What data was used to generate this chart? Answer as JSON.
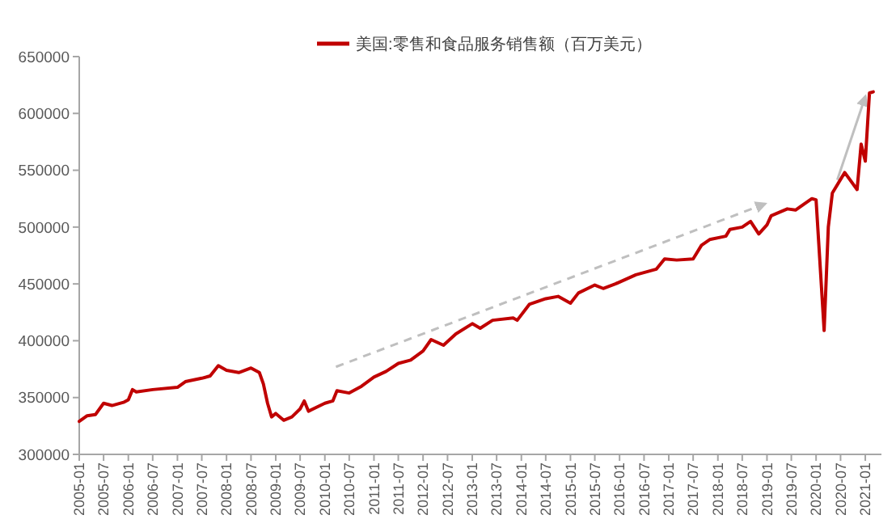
{
  "chart_data": {
    "type": "line",
    "legend": "top",
    "grid": false,
    "marker": "none",
    "line_style": "solid",
    "xlim": [
      "2005-01",
      "2021-05"
    ],
    "xticks": [
      "2005-01",
      "2005-07",
      "2006-01",
      "2006-07",
      "2007-01",
      "2007-07",
      "2008-01",
      "2008-07",
      "2009-01",
      "2009-07",
      "2010-01",
      "2010-07",
      "2011-01",
      "2011-07",
      "2012-01",
      "2012-07",
      "2013-01",
      "2013-07",
      "2014-01",
      "2014-07",
      "2015-01",
      "2015-07",
      "2016-01",
      "2016-07",
      "2017-01",
      "2017-07",
      "2018-01",
      "2018-07",
      "2019-01",
      "2019-07",
      "2020-01",
      "2020-07",
      "2021-01"
    ],
    "ylim": [
      300000,
      650000
    ],
    "yticks": [
      300000,
      350000,
      400000,
      450000,
      500000,
      550000,
      600000,
      650000
    ],
    "series": [
      {
        "name": "美国:零售和食品服务销售额（百万美元）",
        "color": "#c00000",
        "x": [
          "2005-01",
          "2005-03",
          "2005-05",
          "2005-07",
          "2005-09",
          "2005-12",
          "2006-01",
          "2006-02",
          "2006-03",
          "2006-07",
          "2007-01",
          "2007-03",
          "2007-07",
          "2007-09",
          "2007-11",
          "2008-01",
          "2008-04",
          "2008-07",
          "2008-09",
          "2008-10",
          "2008-11",
          "2008-12",
          "2009-01",
          "2009-03",
          "2009-05",
          "2009-07",
          "2009-08",
          "2009-09",
          "2010-01",
          "2010-03",
          "2010-04",
          "2010-07",
          "2010-10",
          "2011-01",
          "2011-04",
          "2011-07",
          "2011-10",
          "2012-01",
          "2012-03",
          "2012-06",
          "2012-09",
          "2013-01",
          "2013-03",
          "2013-06",
          "2013-11",
          "2013-12",
          "2014-03",
          "2014-07",
          "2014-10",
          "2015-01",
          "2015-03",
          "2015-07",
          "2015-09",
          "2015-12",
          "2016-05",
          "2016-10",
          "2016-12",
          "2017-03",
          "2017-07",
          "2017-09",
          "2017-11",
          "2018-03",
          "2018-04",
          "2018-07",
          "2018-09",
          "2018-11",
          "2019-01",
          "2019-02",
          "2019-06",
          "2019-08",
          "2019-12",
          "2020-01",
          "2020-03",
          "2020-04",
          "2020-05",
          "2020-08",
          "2020-11",
          "2020-12",
          "2021-01",
          "2021-02",
          "2021-03"
        ],
        "values": [
          329000,
          334000,
          335000,
          345000,
          343000,
          346000,
          348000,
          357000,
          355000,
          357000,
          359000,
          364000,
          367000,
          369000,
          378000,
          374000,
          372000,
          376000,
          372000,
          362000,
          345000,
          333000,
          336000,
          330000,
          333000,
          340000,
          347000,
          338000,
          345000,
          347000,
          356000,
          354000,
          360000,
          368000,
          373000,
          380000,
          383000,
          391000,
          401000,
          396000,
          406000,
          415000,
          411000,
          418000,
          420000,
          418000,
          432000,
          437000,
          439000,
          433000,
          442000,
          449000,
          446000,
          450000,
          458000,
          463000,
          472000,
          471000,
          472000,
          484000,
          489000,
          492000,
          498000,
          500000,
          505000,
          494000,
          502000,
          510000,
          516000,
          515000,
          525000,
          524000,
          409000,
          500000,
          530000,
          548000,
          533000,
          573000,
          558000,
          618000,
          619000
        ]
      }
    ]
  }
}
